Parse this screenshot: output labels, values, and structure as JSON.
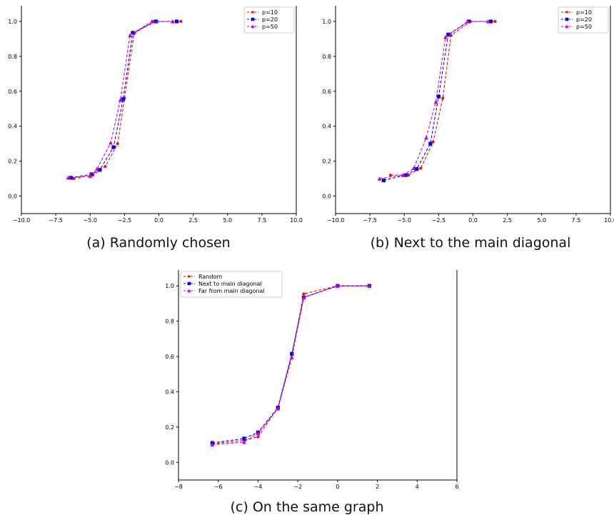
{
  "chart_data": [
    {
      "type": "line",
      "caption": "(a)  Randomly chosen",
      "xlim": [
        -10,
        10
      ],
      "ylim": [
        -0.1,
        1.09
      ],
      "xticks": [
        -10.0,
        -7.5,
        -5.0,
        -2.5,
        0.0,
        2.5,
        5.0,
        7.5,
        10.0
      ],
      "xtick_labels": [
        "−10.0",
        "−7.5",
        "−5.0",
        "−2.5",
        "0.0",
        "2.5",
        "5.0",
        "7.5",
        "10.0"
      ],
      "yticks": [
        0.0,
        0.2,
        0.4,
        0.6,
        0.8,
        1.0
      ],
      "ytick_labels": [
        "0.0",
        "0.2",
        "0.4",
        "0.6",
        "0.8",
        "1.0"
      ],
      "grid": false,
      "legend_position": "top-right",
      "series": [
        {
          "name": "p=10",
          "color": "#ff0000",
          "marker": "circle",
          "x": [
            -6.2,
            -4.8,
            -3.9,
            -3.0,
            -2.5,
            -1.8,
            -0.4,
            1.6
          ],
          "y": [
            0.1,
            0.12,
            0.17,
            0.3,
            0.56,
            0.93,
            1.0,
            1.0
          ]
        },
        {
          "name": "p=20",
          "color": "#0000ff",
          "marker": "square",
          "x": [
            -6.4,
            -4.9,
            -4.3,
            -3.3,
            -2.6,
            -1.9,
            -0.2,
            1.3
          ],
          "y": [
            0.105,
            0.125,
            0.15,
            0.28,
            0.555,
            0.935,
            1.0,
            1.0
          ]
        },
        {
          "name": "p=50",
          "color": "#cc00cc",
          "marker": "triangle",
          "x": [
            -6.6,
            -5.0,
            -4.5,
            -3.5,
            -2.8,
            -2.1,
            -0.5,
            1.0
          ],
          "y": [
            0.105,
            0.115,
            0.155,
            0.305,
            0.55,
            0.92,
            1.0,
            1.0
          ]
        }
      ]
    },
    {
      "type": "line",
      "caption": "(b)  Next to the main diagonal",
      "xlim": [
        -10,
        10
      ],
      "ylim": [
        -0.1,
        1.09
      ],
      "xticks": [
        -10.0,
        -7.5,
        -5.0,
        -2.5,
        0.0,
        2.5,
        5.0,
        7.5,
        10.0
      ],
      "xtick_labels": [
        "−10.0",
        "−7.5",
        "−5.0",
        "−2.5",
        "0.0",
        "2.5",
        "5.0",
        "7.5",
        "10.0"
      ],
      "yticks": [
        0.0,
        0.2,
        0.4,
        0.6,
        0.8,
        1.0
      ],
      "ytick_labels": [
        "0.0",
        "0.2",
        "0.4",
        "0.6",
        "0.8",
        "1.0"
      ],
      "grid": false,
      "legend_position": "top-right",
      "series": [
        {
          "name": "p=10",
          "color": "#ff0000",
          "marker": "circle",
          "x": [
            -6.0,
            -4.7,
            -3.8,
            -2.9,
            -2.2,
            -1.6,
            -0.2,
            1.6
          ],
          "y": [
            0.12,
            0.12,
            0.16,
            0.31,
            0.56,
            0.92,
            1.0,
            1.0
          ]
        },
        {
          "name": "p=20",
          "color": "#0000ff",
          "marker": "square",
          "x": [
            -6.5,
            -4.9,
            -4.1,
            -3.1,
            -2.5,
            -1.8,
            -0.3,
            1.3
          ],
          "y": [
            0.09,
            0.12,
            0.155,
            0.3,
            0.57,
            0.925,
            1.0,
            1.0
          ]
        },
        {
          "name": "p=50",
          "color": "#cc00cc",
          "marker": "triangle",
          "x": [
            -6.8,
            -5.1,
            -4.3,
            -3.4,
            -2.7,
            -2.0,
            -0.4,
            1.1
          ],
          "y": [
            0.1,
            0.12,
            0.16,
            0.335,
            0.54,
            0.91,
            1.0,
            1.0
          ]
        }
      ]
    },
    {
      "type": "line",
      "caption": "(c)  On the same graph",
      "xlim": [
        -8,
        6
      ],
      "ylim": [
        -0.1,
        1.09
      ],
      "xticks": [
        -8,
        -6,
        -4,
        -2,
        0,
        2,
        4,
        6
      ],
      "xtick_labels": [
        "−8",
        "−6",
        "−4",
        "−2",
        "0",
        "2",
        "4",
        "6"
      ],
      "yticks": [
        0.0,
        0.2,
        0.4,
        0.6,
        0.8,
        1.0
      ],
      "ytick_labels": [
        "0.0",
        "0.2",
        "0.4",
        "0.6",
        "0.8",
        "1.0"
      ],
      "grid": false,
      "legend_position": "top-left",
      "series": [
        {
          "name": "Random",
          "color": "#ff0000",
          "marker": "circle",
          "x": [
            -6.3,
            -4.7,
            -4.0,
            -3.0,
            -2.3,
            -1.7,
            0.0,
            1.6
          ],
          "y": [
            0.105,
            0.125,
            0.145,
            0.31,
            0.61,
            0.955,
            1.0,
            1.0
          ]
        },
        {
          "name": "Next to main diagonal",
          "color": "#0000ff",
          "marker": "square",
          "x": [
            -6.3,
            -4.7,
            -4.0,
            -3.0,
            -2.3,
            -1.7,
            0.0,
            1.6
          ],
          "y": [
            0.11,
            0.135,
            0.17,
            0.31,
            0.615,
            0.935,
            1.0,
            1.0
          ]
        },
        {
          "name": "Far from main diagonal",
          "color": "#cc00cc",
          "marker": "triangle",
          "x": [
            -6.3,
            -4.7,
            -4.0,
            -3.0,
            -2.3,
            -1.7,
            0.0,
            1.6
          ],
          "y": [
            0.1,
            0.115,
            0.165,
            0.305,
            0.595,
            0.935,
            1.0,
            1.0
          ]
        }
      ]
    }
  ]
}
